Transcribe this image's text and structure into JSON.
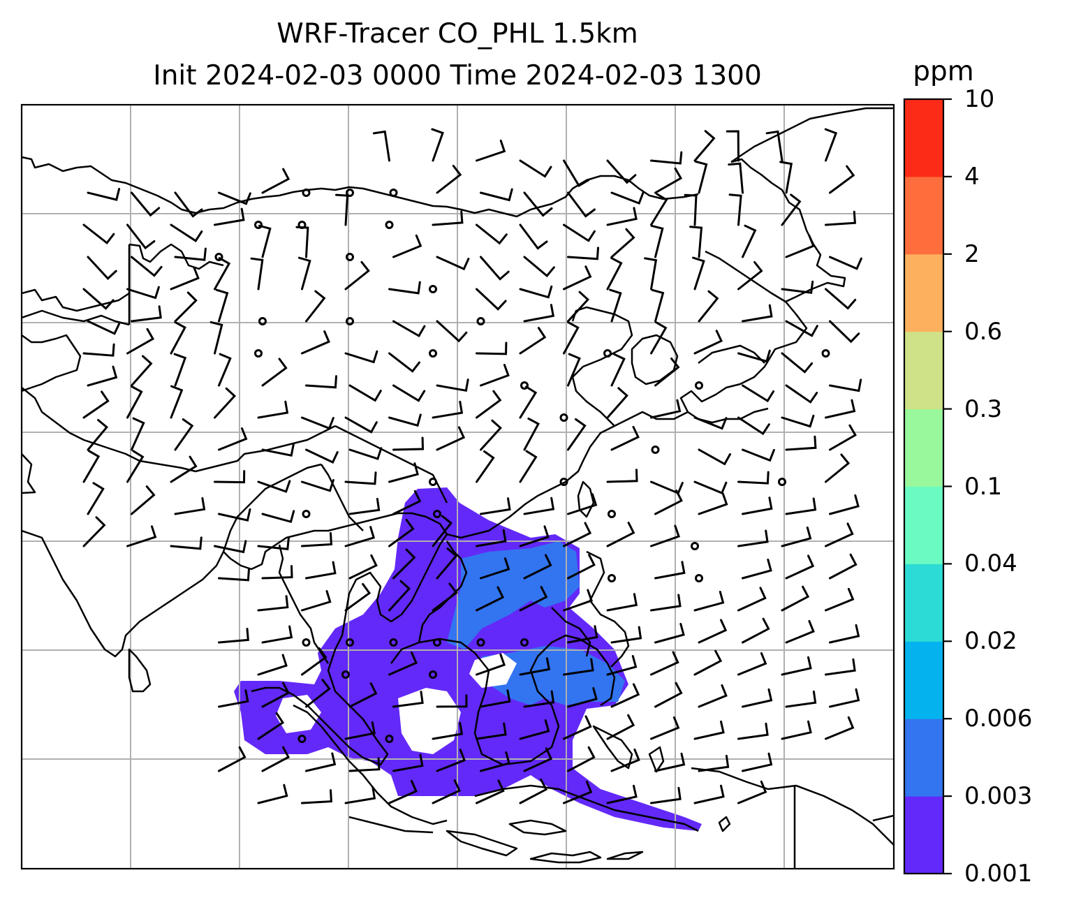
{
  "chart_data": {
    "type": "heatmap",
    "title": "WRF-Tracer CO_PHL 1.5km",
    "subtitle": "Init 2024-02-03 0000 Time 2024-02-03 1300",
    "colorbar": {
      "label": "ppm",
      "levels": [
        "0.001",
        "0.003",
        "0.006",
        "0.02",
        "0.04",
        "0.1",
        "0.3",
        "0.6",
        "2",
        "4",
        "10"
      ],
      "colors": [
        "#6329f8",
        "#3374f0",
        "#04b3ee",
        "#2ddbd6",
        "#6afbc2",
        "#99f89c",
        "#cfe287",
        "#fdb15f",
        "#fe6e3c",
        "#fc2b17"
      ]
    },
    "grid": true,
    "map_features": [
      "coastlines",
      "country-borders",
      "wind-barbs",
      "calm-circles"
    ],
    "plume": {
      "dominant_level_range": "0.001–0.003 ppm",
      "secondary_level_range": "0.003–0.006 ppm"
    }
  }
}
